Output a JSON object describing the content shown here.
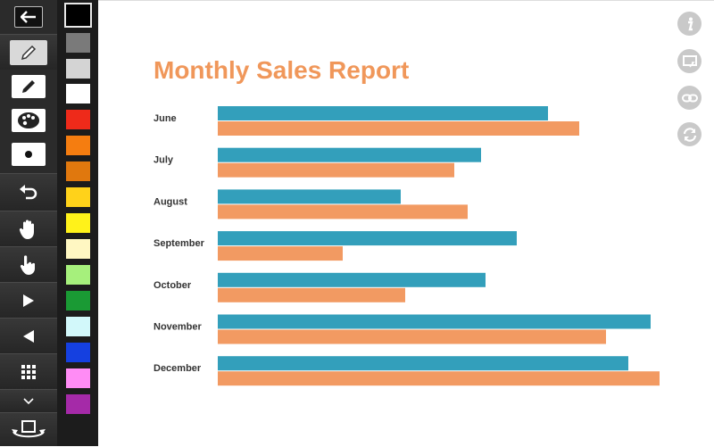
{
  "tools": {
    "back": "back-arrow-icon",
    "pencil_active": "pencil-icon",
    "pencil": "pencil-icon",
    "palette": "palette-icon",
    "brush_size": "dot-icon",
    "undo": "undo-icon",
    "pan": "hand-icon",
    "pointer": "pointer-hand-icon",
    "next": "play-right-icon",
    "prev": "play-left-icon",
    "grid": "grid-icon",
    "expand": "chevron-down-icon",
    "rotate": "rotate-screen-icon"
  },
  "colors": [
    "#000000",
    "#7a7a7a",
    "#d4d4d4",
    "#ffffff",
    "#ee2a1a",
    "#f57d10",
    "#e0780e",
    "#ffd21a",
    "#fff21a",
    "#fff7c2",
    "#a6f07c",
    "#1a9a34",
    "#d2f8fa",
    "#1540e0",
    "#ff8cf5",
    "#a52aa8"
  ],
  "right_icons": [
    "info-icon",
    "screen-share-icon",
    "link-icon",
    "refresh-icon"
  ],
  "chart_data": {
    "type": "bar",
    "orientation": "horizontal",
    "title": "Monthly Sales Report",
    "categories": [
      "June",
      "July",
      "August",
      "September",
      "October",
      "November",
      "December"
    ],
    "series": [
      {
        "color": "#339fbb",
        "values": [
          74,
          59,
          41,
          67,
          60,
          97,
          92
        ]
      },
      {
        "color": "#f29a62",
        "values": [
          81,
          53,
          56,
          28,
          42,
          87,
          99
        ]
      }
    ],
    "xlim": [
      0,
      100
    ],
    "grid": false
  }
}
